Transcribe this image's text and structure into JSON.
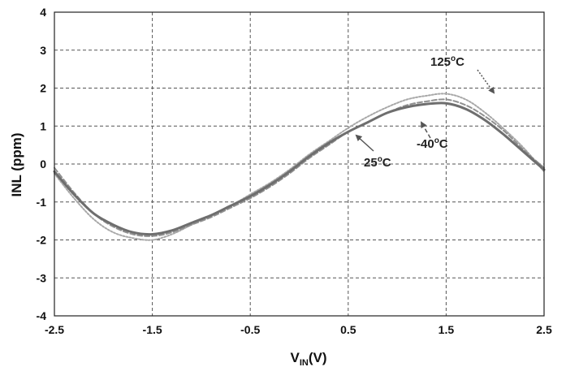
{
  "chart_data": {
    "type": "line",
    "xlabel": "V",
    "xlabel_sub": "IN",
    "xlabel_unit": "(V)",
    "ylabel": "INL (ppm)",
    "xlim": [
      -2.5,
      2.5
    ],
    "ylim": [
      -4,
      4
    ],
    "x_ticks": [
      -2.5,
      -1.5,
      -0.5,
      0.5,
      1.5,
      2.5
    ],
    "x_tick_labels": [
      "-2.5",
      "-1.5",
      "-0.5",
      "0.5",
      "1.5",
      "2.5"
    ],
    "y_ticks": [
      -4,
      -3,
      -2,
      -1,
      0,
      1,
      2,
      3,
      4
    ],
    "y_tick_labels": [
      "-4",
      "-3",
      "-2",
      "-1",
      "0",
      "1",
      "2",
      "3",
      "4"
    ],
    "grid": true,
    "annotations": [
      {
        "base": "125",
        "sup": "o",
        "unit": "C"
      },
      {
        "base": "-40",
        "sup": "o",
        "unit": "C"
      },
      {
        "base": "25",
        "sup": "o",
        "unit": "C"
      }
    ],
    "series": [
      {
        "line_style": "solid",
        "color": "#6e6e6e",
        "x": [
          -2.5,
          -2.3,
          -2.1,
          -1.9,
          -1.7,
          -1.5,
          -1.3,
          -1.1,
          -0.9,
          -0.7,
          -0.5,
          -0.3,
          -0.1,
          0.1,
          0.3,
          0.5,
          0.7,
          0.9,
          1.1,
          1.3,
          1.5,
          1.7,
          1.9,
          2.1,
          2.3,
          2.5
        ],
        "y": [
          -0.2,
          -0.8,
          -1.3,
          -1.6,
          -1.8,
          -1.85,
          -1.75,
          -1.55,
          -1.35,
          -1.1,
          -0.85,
          -0.55,
          -0.2,
          0.2,
          0.55,
          0.85,
          1.1,
          1.35,
          1.5,
          1.58,
          1.6,
          1.45,
          1.15,
          0.75,
          0.3,
          -0.15
        ]
      },
      {
        "line_style": "dashed",
        "color": "#909090",
        "x": [
          -2.5,
          -2.3,
          -2.1,
          -1.9,
          -1.7,
          -1.5,
          -1.3,
          -1.1,
          -0.9,
          -0.7,
          -0.5,
          -0.3,
          -0.1,
          0.1,
          0.3,
          0.5,
          0.7,
          0.9,
          1.1,
          1.3,
          1.5,
          1.7,
          1.9,
          2.1,
          2.3,
          2.5
        ],
        "y": [
          -0.1,
          -0.75,
          -1.3,
          -1.65,
          -1.85,
          -1.9,
          -1.8,
          -1.6,
          -1.4,
          -1.15,
          -0.9,
          -0.6,
          -0.25,
          0.15,
          0.5,
          0.85,
          1.1,
          1.35,
          1.55,
          1.65,
          1.7,
          1.55,
          1.25,
          0.85,
          0.35,
          -0.1
        ]
      },
      {
        "line_style": "dotted",
        "color": "#a8a8a8",
        "x": [
          -2.5,
          -2.3,
          -2.1,
          -1.9,
          -1.7,
          -1.5,
          -1.3,
          -1.1,
          -0.9,
          -0.7,
          -0.5,
          -0.3,
          -0.1,
          0.1,
          0.3,
          0.5,
          0.7,
          0.9,
          1.1,
          1.3,
          1.5,
          1.7,
          1.9,
          2.1,
          2.3,
          2.5
        ],
        "y": [
          -0.25,
          -0.9,
          -1.45,
          -1.8,
          -1.95,
          -2.0,
          -1.85,
          -1.6,
          -1.35,
          -1.1,
          -0.8,
          -0.5,
          -0.15,
          0.25,
          0.6,
          0.95,
          1.25,
          1.5,
          1.7,
          1.8,
          1.85,
          1.7,
          1.35,
          0.9,
          0.4,
          -0.2
        ]
      }
    ]
  }
}
